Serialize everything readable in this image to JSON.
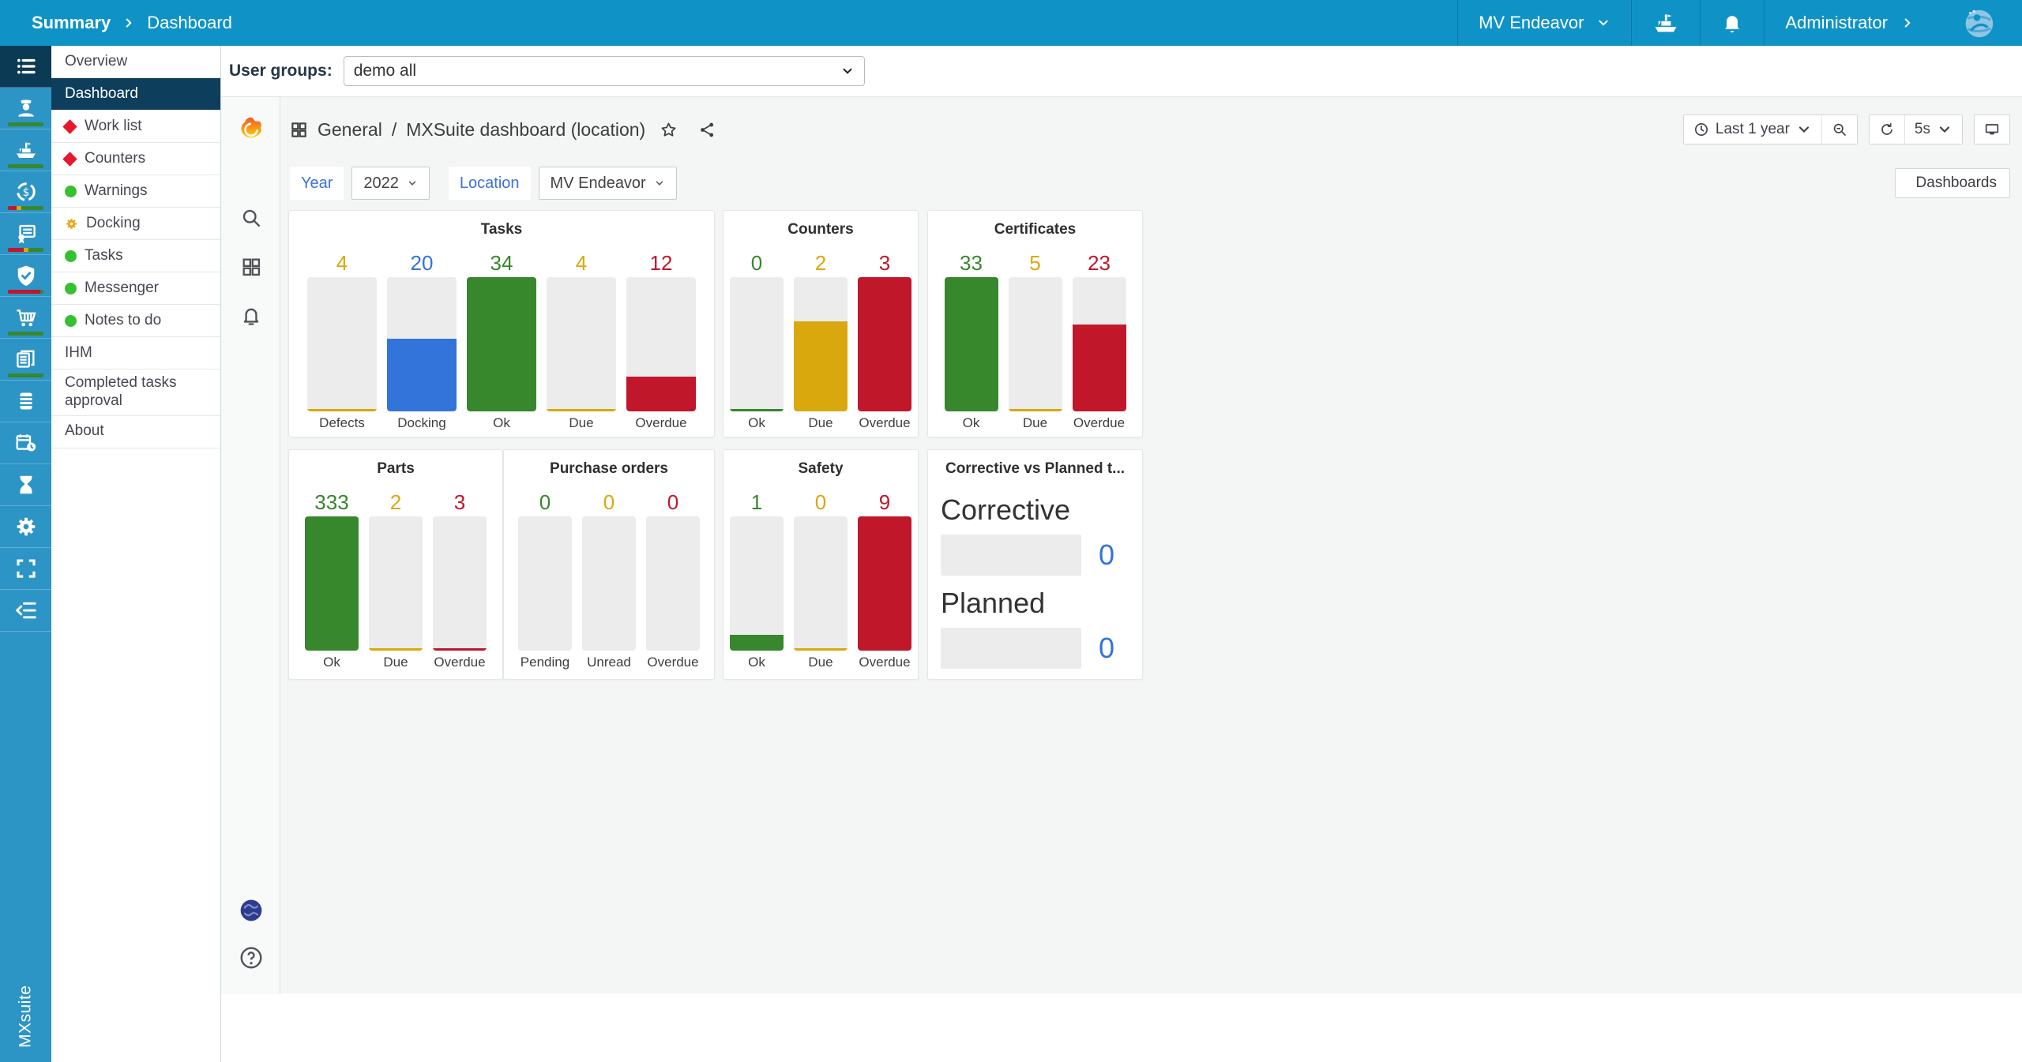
{
  "colors": {
    "topbar": "#0F93C7",
    "rail": "#2C95C6",
    "rail_active": "#0B3A55",
    "menu_selected": "#0D3E5C",
    "main_bg": "#F4F5F5",
    "green": "#37872D",
    "blue": "#3274D9",
    "yellow": "#D9A80C",
    "red": "#C0172B",
    "red_text": "#C4162A",
    "yellow_text": "#D4A309",
    "green_text": "#37872D",
    "blue_text": "#3274D9"
  },
  "top_bar": {
    "breadcrumb": [
      "Summary",
      "Dashboard"
    ],
    "vessel": "MV Endeavor",
    "user": "Administrator",
    "brand_vertical": "MXsuite"
  },
  "user_groups": {
    "label": "User groups:",
    "value": "demo all"
  },
  "icon_rail": {
    "items": [
      {
        "icon": "menu-list",
        "active": true
      },
      {
        "icon": "crew",
        "bar": [
          [
            "green",
            100
          ]
        ]
      },
      {
        "icon": "vessel",
        "bar": [
          [
            "green",
            100
          ]
        ]
      },
      {
        "icon": "counters",
        "bar": [
          [
            "red",
            25
          ],
          [
            "yellow",
            12
          ],
          [
            "green",
            63
          ]
        ]
      },
      {
        "icon": "certificates",
        "bar": [
          [
            "red",
            45
          ],
          [
            "yellow",
            12
          ],
          [
            "green",
            43
          ]
        ]
      },
      {
        "icon": "safety",
        "bar": [
          [
            "red",
            90
          ],
          [
            "green",
            10
          ]
        ]
      },
      {
        "icon": "purchasing",
        "bar": [
          [
            "green",
            100
          ]
        ]
      },
      {
        "icon": "documents",
        "bar": [
          [
            "green",
            100
          ]
        ]
      },
      {
        "icon": "oil"
      },
      {
        "icon": "planning"
      },
      {
        "icon": "hourglass"
      },
      {
        "icon": "settings"
      },
      {
        "icon": "fullscreen"
      },
      {
        "icon": "collapse"
      }
    ]
  },
  "menu": {
    "items": [
      {
        "label": "Overview"
      },
      {
        "label": "Dashboard",
        "selected": true
      },
      {
        "label": "Work list",
        "badge": "red-diamond"
      },
      {
        "label": "Counters",
        "badge": "red-diamond"
      },
      {
        "label": "Warnings",
        "badge": "green-circle"
      },
      {
        "label": "Docking",
        "badge": "yellow-gear"
      },
      {
        "label": "Tasks",
        "badge": "green-circle"
      },
      {
        "label": "Messenger",
        "badge": "green-circle"
      },
      {
        "label": "Notes to do",
        "badge": "green-circle"
      },
      {
        "label": "IHM"
      },
      {
        "label": "Completed tasks approval"
      },
      {
        "label": "About"
      }
    ]
  },
  "grafana": {
    "rail_icons": [
      "grafana-logo",
      "search",
      "dashboards-grid",
      "alerts-bell"
    ],
    "header": {
      "section": "General",
      "separator": "/",
      "title": "MXSuite dashboard (location)"
    },
    "toolbar": {
      "time_range": "Last 1 year",
      "refresh_interval": "5s",
      "dashboards_label": "Dashboards"
    },
    "variables": [
      {
        "label": "Year",
        "value": "2022"
      },
      {
        "label": "Location",
        "value": "MV Endeavor"
      }
    ]
  },
  "chart_data": [
    {
      "type": "bar",
      "title": "Tasks",
      "categories": [
        "Defects",
        "Docking",
        "Ok",
        "Due",
        "Overdue"
      ],
      "values": [
        4,
        20,
        34,
        4,
        12
      ],
      "colors": [
        "yellow",
        "blue",
        "green",
        "yellow",
        "red"
      ],
      "fill_pct": [
        2,
        54,
        100,
        2,
        26
      ],
      "ymax_hint": "scaled to largest bar (34)"
    },
    {
      "type": "bar",
      "title": "Counters",
      "categories": [
        "Ok",
        "Due",
        "Overdue"
      ],
      "values": [
        0,
        2,
        3
      ],
      "colors": [
        "green",
        "yellow",
        "red"
      ],
      "fill_pct": [
        2,
        67,
        100
      ]
    },
    {
      "type": "bar",
      "title": "Certificates",
      "categories": [
        "Ok",
        "Due",
        "Overdue"
      ],
      "values": [
        33,
        5,
        23
      ],
      "colors": [
        "green",
        "yellow",
        "red"
      ],
      "fill_pct": [
        100,
        2,
        65
      ]
    },
    {
      "type": "bar",
      "title": "Parts",
      "categories": [
        "Ok",
        "Due",
        "Overdue"
      ],
      "values": [
        333,
        2,
        3
      ],
      "colors": [
        "green",
        "yellow",
        "red"
      ],
      "fill_pct": [
        100,
        2,
        2
      ]
    },
    {
      "type": "bar",
      "title": "Purchase orders",
      "categories": [
        "Pending",
        "Unread",
        "Overdue"
      ],
      "values": [
        0,
        0,
        0
      ],
      "colors": [
        "green",
        "yellow",
        "red"
      ],
      "fill_pct": [
        0,
        0,
        0
      ]
    },
    {
      "type": "bar",
      "title": "Safety",
      "categories": [
        "Ok",
        "Due",
        "Overdue"
      ],
      "values": [
        1,
        0,
        9
      ],
      "colors": [
        "green",
        "yellow",
        "red"
      ],
      "fill_pct": [
        12,
        2,
        100
      ]
    },
    {
      "type": "progress",
      "title": "Corrective vs Planned t...",
      "rows": [
        {
          "label": "Corrective",
          "value": 0,
          "fill_pct": 0
        },
        {
          "label": "Planned",
          "value": 0,
          "fill_pct": 0
        }
      ]
    }
  ]
}
